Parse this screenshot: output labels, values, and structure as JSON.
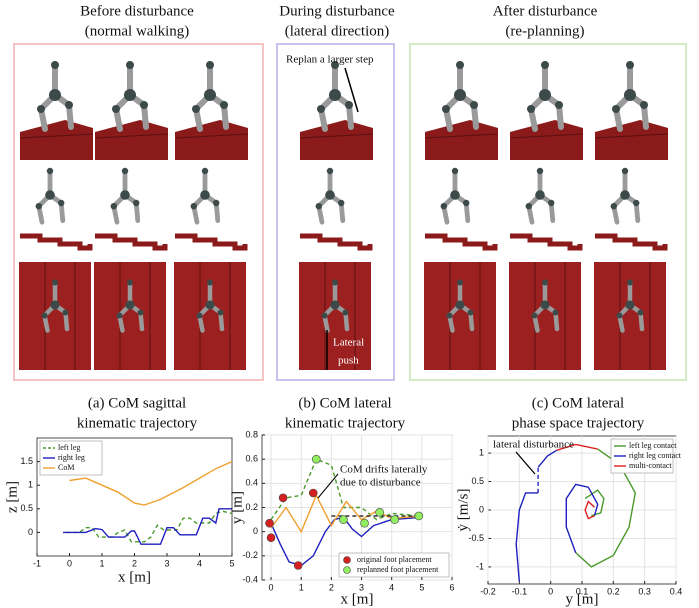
{
  "header": {
    "panels": [
      {
        "title": [
          "Before disturbance",
          "(normal walking)"
        ]
      },
      {
        "title": [
          "During disturbance",
          "(lateral direction)"
        ]
      },
      {
        "title": [
          "After disturbance",
          "(re-planning)"
        ]
      }
    ],
    "annotations": [
      "Replan a larger step",
      "Lateral",
      "push"
    ]
  },
  "chart_data": [
    {
      "type": "line",
      "title": [
        "(a) CoM sagittal",
        "kinematic trajectory"
      ],
      "x_label": "x [m]",
      "y_label": "z [m]",
      "xlim": [
        -1,
        5
      ],
      "ylim": [
        -0.5,
        2
      ],
      "xticks": [
        -1,
        0,
        1,
        2,
        3,
        4,
        5
      ],
      "yticks": [
        0,
        0.5,
        1,
        1.5
      ],
      "grid": false,
      "legend": "upper left",
      "series": [
        {
          "name": "left leg",
          "color": "#4a9a2a",
          "style": "dashed",
          "x": [
            -0.1,
            0.3,
            0.5,
            0.7,
            0.9,
            1.3,
            1.5,
            1.7,
            1.9,
            2.3,
            2.5,
            2.7,
            2.9,
            3.3,
            3.5,
            3.7,
            3.9,
            4.3,
            4.5,
            4.7,
            5
          ],
          "values": [
            0,
            0,
            0.1,
            0.1,
            -0.1,
            -0.1,
            0,
            0.05,
            -0.2,
            -0.2,
            -0.1,
            0.15,
            0.05,
            0.05,
            0.3,
            0.3,
            0.2,
            0.2,
            0.4,
            0.45,
            0.4
          ]
        },
        {
          "name": "right leg",
          "color": "#1f1fc0",
          "style": "solid",
          "x": [
            -0.2,
            0.5,
            0.8,
            1,
            1.2,
            1.7,
            1.9,
            2,
            2.2,
            2.8,
            3,
            3.2,
            3.4,
            3.9,
            4.1,
            4.3,
            4.5,
            4.6,
            5
          ],
          "values": [
            0,
            0,
            0.08,
            0.06,
            -0.1,
            -0.1,
            0.03,
            0.03,
            -0.25,
            -0.25,
            0.1,
            0.1,
            -0.05,
            -0.05,
            0.3,
            0.3,
            0.2,
            0.5,
            0.5
          ]
        },
        {
          "name": "CoM",
          "color": "#f0a030",
          "style": "solid",
          "x": [
            0,
            0.5,
            1,
            1.5,
            2,
            2.3,
            2.8,
            3.5,
            4,
            4.5,
            5
          ],
          "values": [
            1.1,
            1.15,
            1,
            0.85,
            0.62,
            0.58,
            0.7,
            0.95,
            1.15,
            1.35,
            1.5
          ]
        }
      ]
    },
    {
      "type": "line",
      "title": [
        "(b) CoM lateral",
        "kinematic trajectory"
      ],
      "x_label": "x [m]",
      "y_label": "y [m]",
      "xlim": [
        -0.3,
        6
      ],
      "ylim": [
        -0.4,
        0.8
      ],
      "xticks": [
        0,
        1,
        2,
        3,
        4,
        5,
        6
      ],
      "yticks": [
        -0.4,
        -0.2,
        0,
        0.2,
        0.4,
        0.6,
        0.8
      ],
      "grid": true,
      "legend": "lower right",
      "annotation": [
        "CoM drifts laterally",
        "due to disturbance"
      ],
      "series": [
        {
          "color": "#1f1fc0",
          "style": "solid",
          "x": [
            0,
            0.3,
            0.6,
            1,
            1.4,
            1.8,
            2.1,
            2.4,
            2.7,
            3,
            3.4,
            4,
            4.5,
            5
          ],
          "values": [
            0.07,
            -0.1,
            -0.25,
            -0.28,
            -0.2,
            0,
            0.1,
            0.12,
            0.02,
            -0.04,
            0.05,
            0.1,
            0.11,
            0.12
          ]
        },
        {
          "color": "#4a9a2a",
          "style": "dashed",
          "x": [
            0,
            0.5,
            1,
            1.5,
            2,
            2.4,
            3,
            3.5,
            4,
            5
          ],
          "values": [
            0.1,
            0.28,
            0.3,
            0.6,
            0.55,
            0.2,
            0.2,
            0.1,
            0.15,
            0.13
          ]
        },
        {
          "color": "#f0a030",
          "style": "solid",
          "x": [
            0,
            0.5,
            1,
            1.5,
            2,
            2.5,
            3,
            3.5,
            4,
            5
          ],
          "values": [
            0.03,
            0.2,
            0,
            0.3,
            0.05,
            0.25,
            0.1,
            0.17,
            0.11,
            0.13
          ]
        },
        {
          "color": "#333333",
          "style": "dashed",
          "x": [
            2,
            5
          ],
          "values": [
            0.13,
            0.13
          ]
        },
        {
          "name": "original foot placement",
          "color": "#d42020",
          "mode": "markers",
          "x": [
            -0.05,
            0,
            0.4,
            0.9,
            1.4
          ],
          "values": [
            0.07,
            -0.05,
            0.28,
            -0.28,
            0.32
          ]
        },
        {
          "name": "replanned foot placement",
          "color": "#90ee60",
          "mode": "markers",
          "x": [
            1.5,
            2.4,
            3.1,
            3.6,
            4.1,
            4.9
          ],
          "values": [
            0.6,
            0.1,
            0.07,
            0.16,
            0.1,
            0.13
          ]
        }
      ]
    },
    {
      "type": "line",
      "title": [
        "(c) CoM lateral",
        "phase space trajectory"
      ],
      "x_label": "y [m]",
      "y_label": "ẏ [m/s]",
      "xlim": [
        -0.2,
        0.4
      ],
      "ylim": [
        -1.3,
        1.3
      ],
      "xticks": [
        -0.2,
        -0.1,
        0,
        0.1,
        0.2,
        0.3,
        0.4
      ],
      "yticks": [
        -1,
        -0.5,
        0,
        0.5,
        1
      ],
      "grid": true,
      "legend": "upper right",
      "annotation": [
        "lateral disturbance"
      ],
      "series": [
        {
          "name": "left leg contact",
          "color": "#4a9a2a",
          "style": "solid",
          "x": [
            0.15,
            0.22,
            0.27,
            0.25,
            0.2,
            0.13,
            0.08,
            null,
            0.11,
            0.15,
            0.17,
            0.16,
            0.13
          ],
          "values": [
            1.07,
            0.8,
            0.3,
            -0.3,
            -0.8,
            -1,
            -0.75,
            null,
            0.2,
            0.35,
            0.2,
            -0.05,
            -0.1
          ]
        },
        {
          "name": "right leg contact",
          "color": "#1f1fc0",
          "style": "solid",
          "x": [
            -0.1,
            -0.11,
            -0.1,
            -0.08,
            -0.04,
            null,
            -0.04,
            -0.01,
            0.02,
            null,
            0.08,
            0.05,
            0.05,
            0.08,
            0.12,
            0.15,
            0.14
          ],
          "values": [
            -1.25,
            -0.6,
            0,
            0.3,
            0.3,
            null,
            0.75,
            0.95,
            1.05,
            null,
            -0.75,
            -0.3,
            0.2,
            0.45,
            0.4,
            0.1,
            -0.1
          ]
        },
        {
          "name": "multi-contact",
          "color": "#e02020",
          "style": "solid",
          "x": [
            0.02,
            0.08,
            0.15,
            null,
            0.14,
            0.12,
            0.11,
            0.12,
            0.14
          ],
          "values": [
            1.05,
            1.15,
            1.07,
            null,
            -0.1,
            -0.15,
            0,
            0.15,
            0.05
          ]
        },
        {
          "color": "#1f1fc0",
          "style": "dashed",
          "x": [
            -0.04,
            -0.04
          ],
          "values": [
            0.3,
            0.75
          ]
        }
      ]
    }
  ]
}
